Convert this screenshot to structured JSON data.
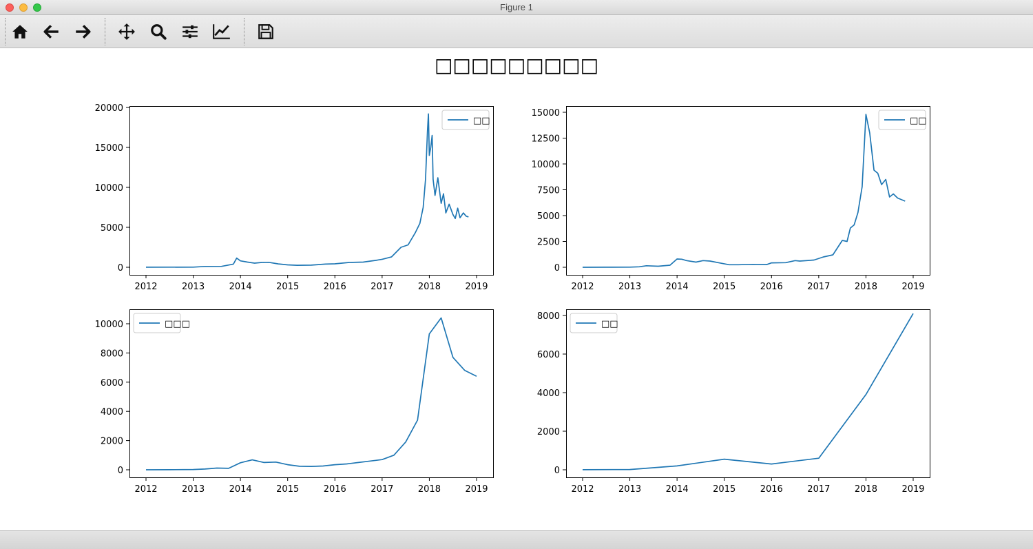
{
  "window": {
    "title": "Figure 1"
  },
  "toolbar": {
    "buttons": [
      {
        "name": "home-button",
        "icon": "home-icon",
        "tooltip": "Reset original view"
      },
      {
        "name": "back-button",
        "icon": "arrow-left-icon",
        "tooltip": "Back"
      },
      {
        "name": "forward-button",
        "icon": "arrow-right-icon",
        "tooltip": "Forward"
      },
      {
        "name": "pan-button",
        "icon": "move-arrows-icon",
        "tooltip": "Pan"
      },
      {
        "name": "zoom-button",
        "icon": "magnifier-icon",
        "tooltip": "Zoom"
      },
      {
        "name": "configure-subplots-button",
        "icon": "sliders-icon",
        "tooltip": "Configure subplots"
      },
      {
        "name": "edit-axis-button",
        "icon": "chart-line-icon",
        "tooltip": "Edit axis"
      },
      {
        "name": "save-button",
        "icon": "floppy-disk-icon",
        "tooltip": "Save"
      }
    ]
  },
  "figure": {
    "suptitle": "□□□□□□□□□"
  },
  "colors": {
    "line": "#1f77b4"
  },
  "chart_data": [
    {
      "type": "line",
      "legend": "□□",
      "legend_position": "upper right",
      "xlim": [
        2012,
        2019
      ],
      "ylim": [
        0,
        20000
      ],
      "xticks": [
        2012,
        2013,
        2014,
        2015,
        2016,
        2017,
        2018,
        2019
      ],
      "yticks": [
        0,
        5000,
        10000,
        15000,
        20000
      ],
      "x": [
        2012.0,
        2013.0,
        2013.25,
        2013.6,
        2013.85,
        2013.92,
        2014.0,
        2014.15,
        2014.3,
        2014.45,
        2014.6,
        2014.8,
        2015.0,
        2015.2,
        2015.5,
        2015.8,
        2016.0,
        2016.3,
        2016.6,
        2016.9,
        2017.0,
        2017.2,
        2017.4,
        2017.55,
        2017.7,
        2017.8,
        2017.87,
        2017.92,
        2017.96,
        2017.98,
        2018.0,
        2018.03,
        2018.06,
        2018.08,
        2018.12,
        2018.18,
        2018.25,
        2018.3,
        2018.35,
        2018.42,
        2018.5,
        2018.55,
        2018.6,
        2018.65,
        2018.72,
        2018.78,
        2018.83
      ],
      "y": [
        5,
        13,
        100,
        110,
        400,
        1150,
        800,
        650,
        520,
        600,
        620,
        420,
        300,
        250,
        270,
        400,
        430,
        600,
        650,
        900,
        1000,
        1300,
        2500,
        2800,
        4300,
        5500,
        7500,
        11000,
        17000,
        19200,
        14000,
        15000,
        16500,
        11000,
        9000,
        11200,
        8000,
        9200,
        6800,
        7900,
        6600,
        6100,
        7400,
        6200,
        6800,
        6400,
        6300
      ]
    },
    {
      "type": "line",
      "legend": "□□",
      "legend_position": "upper right",
      "xlim": [
        2012,
        2019
      ],
      "ylim": [
        0,
        15000
      ],
      "xticks": [
        2012,
        2013,
        2014,
        2015,
        2016,
        2017,
        2018,
        2019
      ],
      "yticks": [
        0,
        2500,
        5000,
        7500,
        10000,
        12500,
        15000
      ],
      "x": [
        2012.0,
        2012.5,
        2013.0,
        2013.2,
        2013.35,
        2013.6,
        2013.85,
        2014.0,
        2014.1,
        2014.2,
        2014.4,
        2014.55,
        2014.7,
        2014.9,
        2015.1,
        2015.3,
        2015.6,
        2015.9,
        2016.0,
        2016.3,
        2016.5,
        2016.6,
        2016.9,
        2017.1,
        2017.3,
        2017.5,
        2017.6,
        2017.67,
        2017.75,
        2017.83,
        2017.92,
        2018.0,
        2018.08,
        2018.17,
        2018.25,
        2018.33,
        2018.42,
        2018.5,
        2018.58,
        2018.67,
        2018.83
      ],
      "y": [
        0,
        5,
        15,
        50,
        150,
        100,
        200,
        800,
        780,
        650,
        500,
        650,
        600,
        420,
        250,
        250,
        280,
        260,
        430,
        450,
        650,
        600,
        700,
        1000,
        1200,
        2600,
        2500,
        3800,
        4100,
        5300,
        7800,
        14800,
        13000,
        9400,
        9100,
        8000,
        8500,
        6800,
        7100,
        6700,
        6400
      ]
    },
    {
      "type": "line",
      "legend": "□□□",
      "legend_position": "upper left",
      "xlim": [
        2012,
        2019
      ],
      "ylim": [
        0,
        10000
      ],
      "xticks": [
        2012,
        2013,
        2014,
        2015,
        2016,
        2017,
        2018,
        2019
      ],
      "yticks": [
        0,
        2000,
        4000,
        6000,
        8000,
        10000
      ],
      "x": [
        2012.0,
        2012.5,
        2013.0,
        2013.25,
        2013.5,
        2013.75,
        2014.0,
        2014.25,
        2014.5,
        2014.75,
        2015.0,
        2015.25,
        2015.5,
        2015.75,
        2016.0,
        2016.25,
        2016.5,
        2016.75,
        2017.0,
        2017.25,
        2017.5,
        2017.75,
        2018.0,
        2018.25,
        2018.5,
        2018.75,
        2019.0
      ],
      "y": [
        0,
        5,
        20,
        50,
        120,
        100,
        480,
        680,
        500,
        530,
        350,
        240,
        230,
        260,
        350,
        400,
        500,
        600,
        700,
        1000,
        1900,
        3400,
        9300,
        10400,
        7700,
        6800,
        6400
      ]
    },
    {
      "type": "line",
      "legend": "□□",
      "legend_position": "upper left",
      "xlim": [
        2012,
        2019
      ],
      "ylim": [
        0,
        8000
      ],
      "xticks": [
        2012,
        2013,
        2014,
        2015,
        2016,
        2017,
        2018,
        2019
      ],
      "yticks": [
        0,
        2000,
        4000,
        6000,
        8000
      ],
      "x": [
        2012,
        2013,
        2014,
        2015,
        2016,
        2017,
        2018,
        2019
      ],
      "y": [
        5,
        13,
        200,
        550,
        300,
        600,
        3900,
        8100
      ]
    }
  ]
}
